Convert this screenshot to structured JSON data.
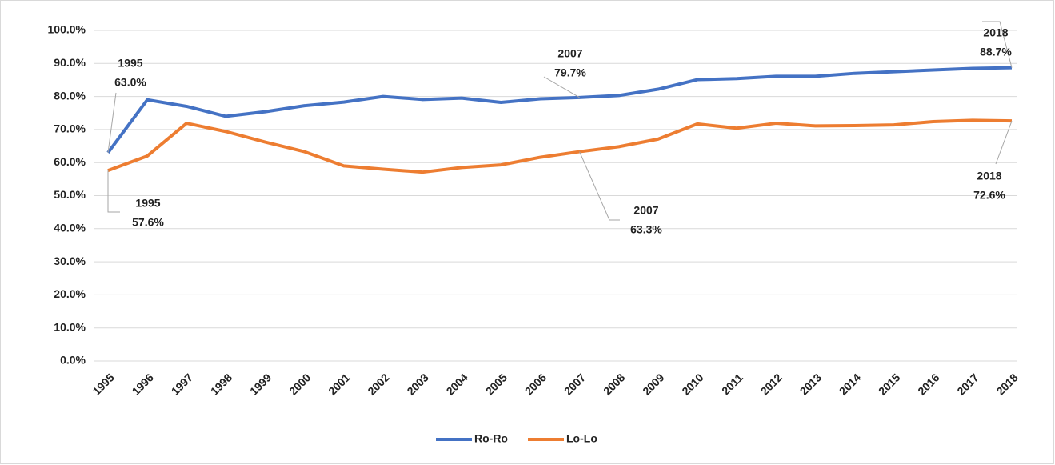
{
  "chart_data": {
    "type": "line",
    "categories": [
      "1995",
      "1996",
      "1997",
      "1998",
      "1999",
      "2000",
      "2001",
      "2002",
      "2003",
      "2004",
      "2005",
      "2006",
      "2007",
      "2008",
      "2009",
      "2010",
      "2011",
      "2012",
      "2013",
      "2014",
      "2015",
      "2016",
      "2017",
      "2018"
    ],
    "series": [
      {
        "name": "Ro-Ro",
        "color": "#4472c4",
        "values": [
          63.0,
          79.0,
          77.0,
          74.0,
          75.4,
          77.2,
          78.3,
          80.0,
          79.1,
          79.5,
          78.2,
          79.3,
          79.7,
          80.3,
          82.2,
          85.1,
          85.4,
          86.1,
          86.1,
          87.0,
          87.5,
          88.0,
          88.5,
          88.7
        ],
        "value_labels": [
          "63.0%",
          null,
          null,
          null,
          null,
          null,
          null,
          null,
          null,
          null,
          null,
          null,
          "79.7%",
          null,
          null,
          null,
          null,
          null,
          null,
          null,
          null,
          null,
          null,
          "88.7%"
        ]
      },
      {
        "name": "Lo-Lo",
        "color": "#ed7d31",
        "values": [
          57.6,
          62.0,
          71.9,
          69.4,
          66.2,
          63.3,
          59.0,
          58.0,
          57.1,
          58.5,
          59.3,
          61.6,
          63.3,
          64.8,
          67.1,
          71.7,
          70.4,
          71.9,
          71.1,
          71.2,
          71.4,
          72.4,
          72.8,
          72.6
        ],
        "value_labels": [
          "57.6%",
          null,
          null,
          null,
          null,
          null,
          null,
          null,
          null,
          null,
          null,
          null,
          "63.3%",
          null,
          null,
          null,
          null,
          null,
          null,
          null,
          null,
          null,
          null,
          "72.6%"
        ]
      }
    ],
    "ylim": [
      0,
      100
    ],
    "yticks": [
      {
        "value": 0,
        "label": "0.0%"
      },
      {
        "value": 10,
        "label": "10.0%"
      },
      {
        "value": 20,
        "label": "20.0%"
      },
      {
        "value": 30,
        "label": "30.0%"
      },
      {
        "value": 40,
        "label": "40.0%"
      },
      {
        "value": 50,
        "label": "50.0%"
      },
      {
        "value": 60,
        "label": "60.0%"
      },
      {
        "value": 70,
        "label": "70.0%"
      },
      {
        "value": 80,
        "label": "80.0%"
      },
      {
        "value": 90,
        "label": "90.0%"
      },
      {
        "value": 100,
        "label": "100.0%"
      }
    ],
    "grid": true,
    "legend": "bottom"
  }
}
